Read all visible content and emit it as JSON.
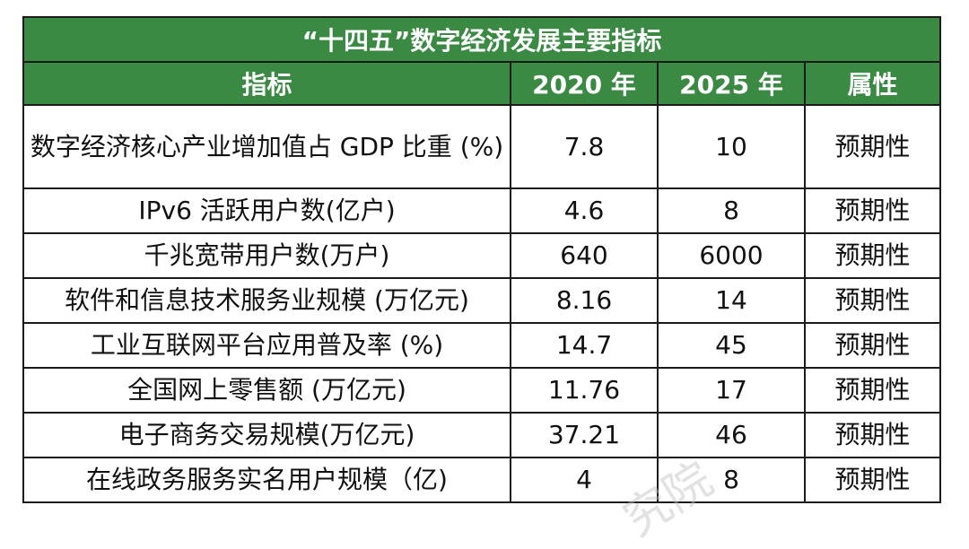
{
  "table": {
    "title": "“十四五”数字经济发展主要指标",
    "headers": [
      "指标",
      "2020 年",
      "2025 年",
      "属性"
    ],
    "rows": [
      {
        "indicator": "数字经济核心产业增加值占 GDP 比重 (%)",
        "y2020": "7.8",
        "y2025": "10",
        "attr": "预期性"
      },
      {
        "indicator": "IPv6 活跃用户数(亿户)",
        "y2020": "4.6",
        "y2025": "8",
        "attr": "预期性"
      },
      {
        "indicator": "千兆宽带用户数(万户)",
        "y2020": "640",
        "y2025": "6000",
        "attr": "预期性"
      },
      {
        "indicator": "软件和信息技术服务业规模 (万亿元)",
        "y2020": "8.16",
        "y2025": "14",
        "attr": "预期性"
      },
      {
        "indicator": "工业互联网平台应用普及率 (%)",
        "y2020": "14.7",
        "y2025": "45",
        "attr": "预期性"
      },
      {
        "indicator": "全国网上零售额 (万亿元)",
        "y2020": "11.76",
        "y2025": "17",
        "attr": "预期性"
      },
      {
        "indicator": "电子商务交易规模(万亿元)",
        "y2020": "37.21",
        "y2025": "46",
        "attr": "预期性"
      },
      {
        "indicator": "在线政务服务实名用户规模（亿)",
        "y2020": "4",
        "y2025": "8",
        "attr": "预期性"
      }
    ]
  },
  "watermark": "究院",
  "colors": {
    "header_bg": "#3a8a44",
    "header_text": "#ffffff",
    "border": "#1b1b1b"
  }
}
